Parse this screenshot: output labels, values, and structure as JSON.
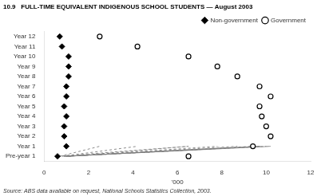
{
  "chart_data": {
    "type": "dumbbell",
    "title": "10.9   FULL-TIME EQUIVALENT INDIGENOUS SCHOOL STUDENTS — August 2003",
    "annotations": [
      "Source: ABS data available on request, National Schools Statistics Collection, 2003."
    ],
    "xlabel": "'000",
    "categories": [
      "Pre-year 1",
      "Year 1",
      "Year 2",
      "Year 3",
      "Year 4",
      "Year 5",
      "Year 6",
      "Year 7",
      "Year 8",
      "Year 9",
      "Year 10",
      "Year 11",
      "Year 12"
    ],
    "series": [
      {
        "name": "Non-government",
        "color": "black",
        "marker": "diamond",
        "values": [
          0.6,
          1.0,
          0.9,
          0.9,
          1.0,
          0.9,
          1.0,
          1.0,
          1.1,
          1.1,
          1.1,
          0.8,
          0.7
        ]
      },
      {
        "name": "Government",
        "color": "black",
        "marker": "hollow_circle",
        "values": [
          6.5,
          9.4,
          10.2,
          10.0,
          9.8,
          9.7,
          10.2,
          9.7,
          8.7,
          7.8,
          6.5,
          4.2,
          2.5
        ]
      }
    ],
    "line_style": "dashed",
    "xlim": [
      0,
      12
    ],
    "xticks": [
      0,
      2,
      4,
      6,
      8,
      10,
      12
    ],
    "grid": false,
    "legend": "upper right"
  }
}
